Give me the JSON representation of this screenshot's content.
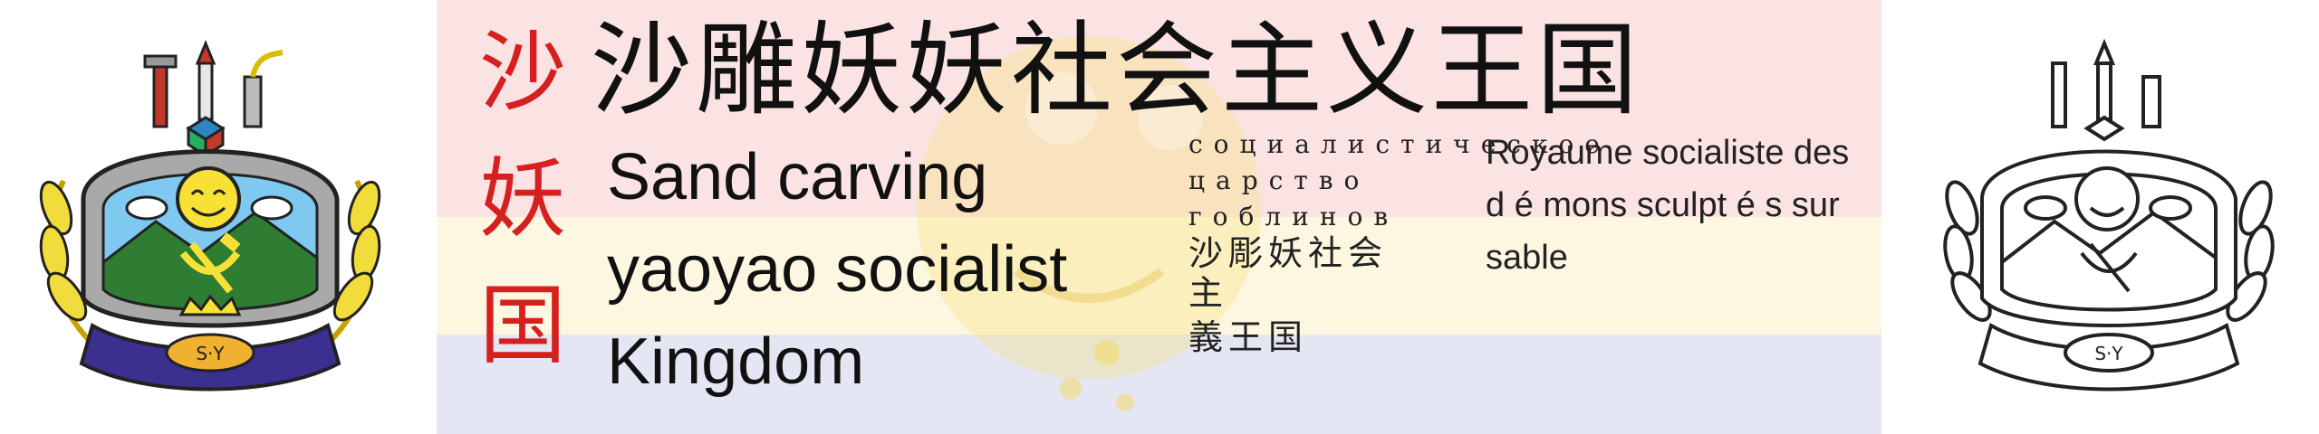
{
  "title_cn": "沙雕妖妖社会主义王国",
  "short_name_cn": [
    "沙",
    "妖",
    "国"
  ],
  "name_en": [
    "Sand carving",
    "yaoyao socialist",
    "Kingdom"
  ],
  "name_ru": {
    "text": "социалистическое царство гоблинов",
    "mixed_tail": "沙彫妖社会主",
    "mixed_tail_2": "義王国"
  },
  "name_fr": "Royaume socialiste des d é mons sculpt é s sur sable",
  "emblem": {
    "initials": "S·Y",
    "icon": "hammer-and-sickle-icon"
  },
  "colors": {
    "band_top": "#fbe3e3",
    "band_middle": "#fdf6e1",
    "band_bottom": "#e4e6f4",
    "red": "#d62020",
    "text": "#111111"
  }
}
